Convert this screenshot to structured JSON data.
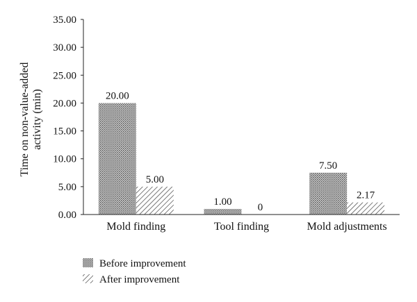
{
  "chart_data": {
    "type": "bar",
    "categories": [
      "Mold finding",
      "Tool finding",
      "Mold adjustments"
    ],
    "series": [
      {
        "name": "Before improvement",
        "values": [
          20.0,
          1.0,
          7.5
        ],
        "labels": [
          "20.00",
          "1.00",
          "7.50"
        ],
        "pattern": "dots"
      },
      {
        "name": "After improvement",
        "values": [
          5.0,
          0,
          2.17
        ],
        "labels": [
          "5.00",
          "0",
          "2.17"
        ],
        "pattern": "hatch"
      }
    ],
    "ylabel_lines": [
      "Time on non-value-added",
      "activity (min)"
    ],
    "xlabel": "",
    "ylim": [
      0,
      35
    ],
    "yticks": [
      "0.00",
      "5.00",
      "10.00",
      "15.00",
      "20.00",
      "25.00",
      "30.00",
      "35.00"
    ],
    "grid": false,
    "legend_position": "bottom-left"
  }
}
